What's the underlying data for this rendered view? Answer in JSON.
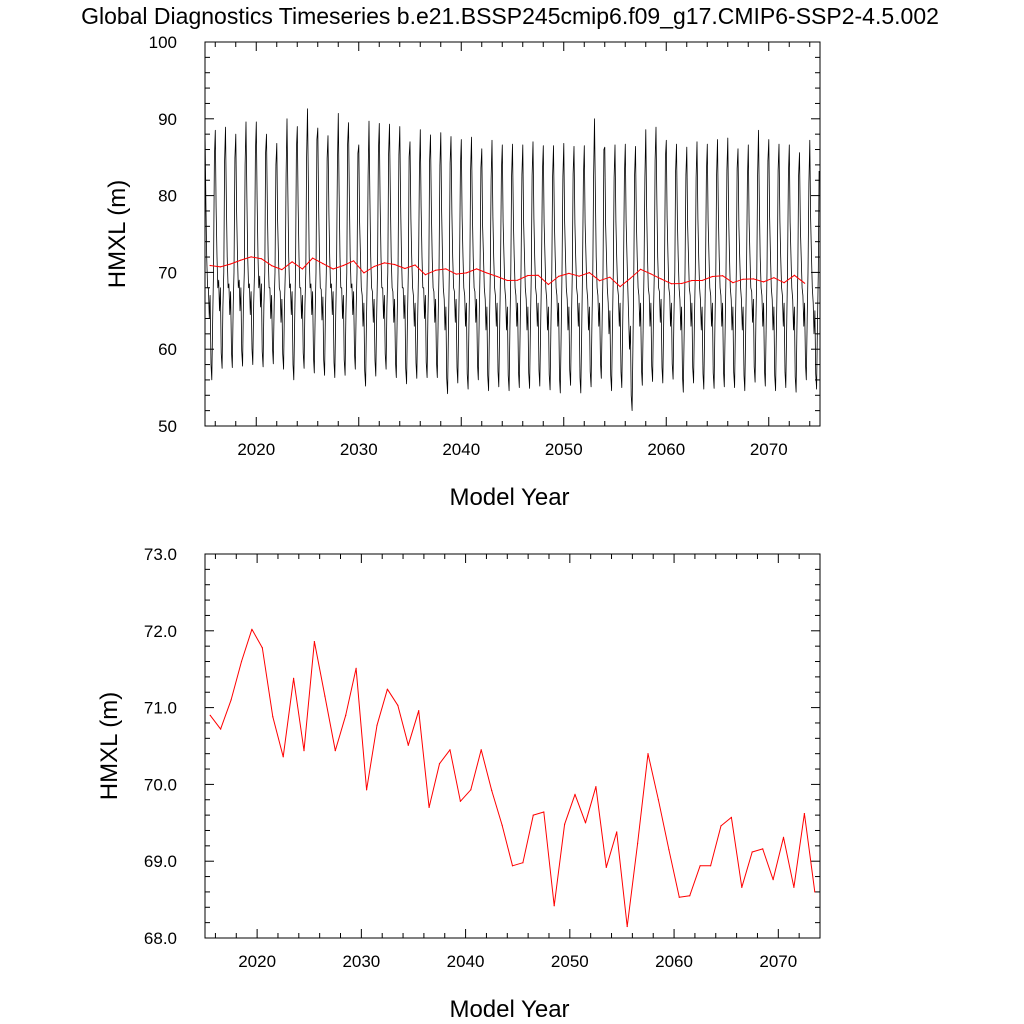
{
  "title": "Global Diagnostics Timeseries b.e21.BSSP245cmip6.f09_g17.CMIP6-SSP2-4.5.002",
  "chart_data": [
    {
      "type": "line",
      "xlabel": "Model Year",
      "ylabel": "HMXL (m)",
      "xlim": [
        2015,
        2075
      ],
      "ylim": [
        50,
        100
      ],
      "xticks": [
        2020,
        2030,
        2040,
        2050,
        2060,
        2070
      ],
      "xtick_labels": [
        "2020",
        "2030",
        "2040",
        "2050",
        "2060",
        "2070"
      ],
      "yticks": [
        50,
        60,
        70,
        80,
        90,
        100
      ],
      "ytick_labels": [
        "50",
        "60",
        "70",
        "80",
        "90",
        "100"
      ],
      "grid": false,
      "legend": "none",
      "series": [
        {
          "kind": "monthly",
          "color": "#000000",
          "years": [
            2015,
            2016,
            2017,
            2018,
            2019,
            2020,
            2021,
            2022,
            2023,
            2024,
            2025,
            2026,
            2027,
            2028,
            2029,
            2030,
            2031,
            2032,
            2033,
            2034,
            2035,
            2036,
            2037,
            2038,
            2039,
            2040,
            2041,
            2042,
            2043,
            2044,
            2045,
            2046,
            2047,
            2048,
            2049,
            2050,
            2051,
            2052,
            2053,
            2054,
            2055,
            2056,
            2057,
            2058,
            2059,
            2060,
            2061,
            2062,
            2063,
            2064,
            2065,
            2066,
            2067,
            2068,
            2069,
            2070,
            2071,
            2072,
            2073,
            2074
          ],
          "annual_max": [
            89.0,
            88.5,
            88.9,
            88.0,
            89.6,
            89.6,
            88.0,
            86.8,
            90.0,
            89.0,
            91.3,
            88.8,
            87.8,
            90.7,
            89.5,
            86.6,
            89.7,
            89.4,
            89.3,
            89.0,
            87.0,
            88.6,
            87.9,
            88.2,
            87.7,
            87.3,
            87.6,
            86.1,
            87.2,
            86.6,
            86.7,
            86.6,
            87.0,
            86.5,
            86.5,
            86.8,
            86.4,
            86.5,
            90.0,
            86.3,
            86.6,
            86.7,
            86.4,
            88.6,
            88.9,
            87.2,
            86.7,
            86.3,
            87.0,
            86.7,
            87.3,
            87.5,
            86.1,
            86.6,
            88.5,
            87.3,
            86.7,
            86.6,
            85.6,
            87.2
          ],
          "annual_min": [
            56.0,
            57.5,
            57.6,
            57.8,
            58.0,
            57.7,
            58.1,
            57.4,
            56.0,
            57.5,
            56.9,
            56.6,
            56.3,
            56.6,
            57.4,
            55.2,
            56.5,
            57.4,
            56.3,
            55.5,
            56.2,
            56.3,
            56.3,
            54.2,
            55.6,
            54.8,
            56.0,
            54.6,
            55.1,
            54.6,
            55.0,
            54.9,
            55.2,
            54.7,
            54.3,
            55.3,
            54.3,
            55.1,
            56.2,
            54.6,
            55.0,
            52.0,
            55.3,
            55.8,
            55.6,
            56.1,
            54.4,
            55.6,
            54.8,
            54.9,
            55.1,
            55.0,
            54.6,
            55.7,
            55.2,
            54.6,
            55.0,
            54.4,
            56.0,
            54.8
          ],
          "secondary_level": [
            64.0,
            65.0,
            64.5,
            65.0,
            64.5,
            65.5,
            64.0,
            63.5,
            64.5,
            64.0,
            64.5,
            63.8,
            64.5,
            64.0,
            64.5,
            63.0,
            63.5,
            64.0,
            63.5,
            64.0,
            63.0,
            64.0,
            63.5,
            62.5,
            63.5,
            63.0,
            63.5,
            62.5,
            63.0,
            62.5,
            63.0,
            62.5,
            63.0,
            62.5,
            63.0,
            62.5,
            63.0,
            62.5,
            63.0,
            62.0,
            63.0,
            60.0,
            63.0,
            63.0,
            63.5,
            63.0,
            62.5,
            63.0,
            62.5,
            63.0,
            63.0,
            62.5,
            62.5,
            63.5,
            63.0,
            62.5,
            63.0,
            62.5,
            63.0,
            62.0
          ]
        },
        {
          "kind": "annual_mean",
          "color": "#ff0000",
          "x": [
            2015.5,
            2016.5,
            2017.5,
            2018.5,
            2019.5,
            2020.5,
            2021.5,
            2022.5,
            2023.5,
            2024.5,
            2025.5,
            2026.5,
            2027.5,
            2028.5,
            2029.5,
            2030.5,
            2031.5,
            2032.5,
            2033.5,
            2034.5,
            2035.5,
            2036.5,
            2037.5,
            2038.5,
            2039.5,
            2040.5,
            2041.5,
            2042.5,
            2043.5,
            2044.5,
            2045.5,
            2046.5,
            2047.5,
            2048.5,
            2049.5,
            2050.5,
            2051.5,
            2052.5,
            2053.5,
            2054.5,
            2055.5,
            2056.5,
            2057.5,
            2058.5,
            2059.5,
            2060.5,
            2061.5,
            2062.5,
            2063.5,
            2064.5,
            2065.5,
            2066.5,
            2067.5,
            2068.5,
            2069.5,
            2070.5,
            2071.5,
            2072.5,
            2073.5
          ],
          "y": [
            70.9,
            70.72,
            71.1,
            71.6,
            72.02,
            71.78,
            70.88,
            70.36,
            71.38,
            70.44,
            71.86,
            71.15,
            70.44,
            70.9,
            71.51,
            69.93,
            70.77,
            71.24,
            71.03,
            70.51,
            70.96,
            69.7,
            70.27,
            70.45,
            69.78,
            69.93,
            70.45,
            69.92,
            69.47,
            68.94,
            68.98,
            69.6,
            69.64,
            68.42,
            69.48,
            69.87,
            69.5,
            69.97,
            68.92,
            69.38,
            68.15,
            69.23,
            70.4,
            69.8,
            69.15,
            68.53,
            68.55,
            68.94,
            68.94,
            69.46,
            69.57,
            68.66,
            69.12,
            69.16,
            68.76,
            69.31,
            68.66,
            69.62,
            68.6
          ]
        }
      ]
    },
    {
      "type": "line",
      "xlabel": "Model Year",
      "ylabel": "HMXL (m)",
      "xlim": [
        2015,
        2074
      ],
      "ylim": [
        68.0,
        73.0
      ],
      "xticks": [
        2020,
        2030,
        2040,
        2050,
        2060,
        2070
      ],
      "xtick_labels": [
        "2020",
        "2030",
        "2040",
        "2050",
        "2060",
        "2070"
      ],
      "yticks": [
        68.0,
        69.0,
        70.0,
        71.0,
        72.0,
        73.0
      ],
      "ytick_labels": [
        "68.0",
        "69.0",
        "70.0",
        "71.0",
        "72.0",
        "73.0"
      ],
      "grid": false,
      "legend": "none",
      "series": [
        {
          "kind": "annual_mean",
          "color": "#ff0000",
          "x": [
            2015.5,
            2016.5,
            2017.5,
            2018.5,
            2019.5,
            2020.5,
            2021.5,
            2022.5,
            2023.5,
            2024.5,
            2025.5,
            2026.5,
            2027.5,
            2028.5,
            2029.5,
            2030.5,
            2031.5,
            2032.5,
            2033.5,
            2034.5,
            2035.5,
            2036.5,
            2037.5,
            2038.5,
            2039.5,
            2040.5,
            2041.5,
            2042.5,
            2043.5,
            2044.5,
            2045.5,
            2046.5,
            2047.5,
            2048.5,
            2049.5,
            2050.5,
            2051.5,
            2052.5,
            2053.5,
            2054.5,
            2055.5,
            2056.5,
            2057.5,
            2058.5,
            2059.5,
            2060.5,
            2061.5,
            2062.5,
            2063.5,
            2064.5,
            2065.5,
            2066.5,
            2067.5,
            2068.5,
            2069.5,
            2070.5,
            2071.5,
            2072.5,
            2073.5
          ],
          "y": [
            70.9,
            70.72,
            71.1,
            71.6,
            72.02,
            71.78,
            70.88,
            70.36,
            71.38,
            70.44,
            71.86,
            71.15,
            70.44,
            70.9,
            71.51,
            69.93,
            70.77,
            71.24,
            71.03,
            70.51,
            70.96,
            69.7,
            70.27,
            70.45,
            69.78,
            69.93,
            70.45,
            69.92,
            69.47,
            68.94,
            68.98,
            69.6,
            69.64,
            68.42,
            69.48,
            69.87,
            69.5,
            69.97,
            68.92,
            69.38,
            68.15,
            69.23,
            70.4,
            69.8,
            69.15,
            68.53,
            68.55,
            68.94,
            68.94,
            69.46,
            69.57,
            68.66,
            69.12,
            69.16,
            68.76,
            69.31,
            68.66,
            69.62,
            68.6
          ]
        }
      ]
    }
  ]
}
